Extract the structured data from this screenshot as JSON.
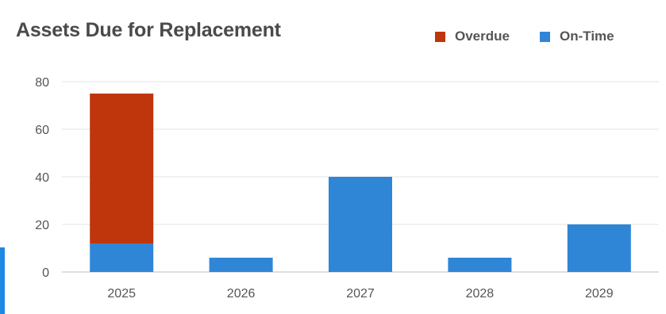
{
  "header": {
    "title": "Assets Due for Replacement"
  },
  "colors": {
    "overdue": "#bf360c",
    "on_time": "#2f86d6",
    "grid": "#e3e3e3",
    "axis": "#bdbdbd"
  },
  "chart_data": {
    "type": "bar",
    "stacked": true,
    "title": "Assets Due for Replacement",
    "categories": [
      "2025",
      "2026",
      "2027",
      "2028",
      "2029"
    ],
    "series": [
      {
        "name": "On-Time",
        "color": "#2f86d6",
        "values": [
          12,
          6,
          40,
          6,
          20
        ]
      },
      {
        "name": "Overdue",
        "color": "#bf360c",
        "values": [
          63,
          0,
          0,
          0,
          0
        ]
      }
    ],
    "ylim": [
      0,
      80
    ],
    "yticks": [
      0,
      20,
      40,
      60,
      80
    ],
    "grid": true,
    "legend_position": "top-right"
  }
}
